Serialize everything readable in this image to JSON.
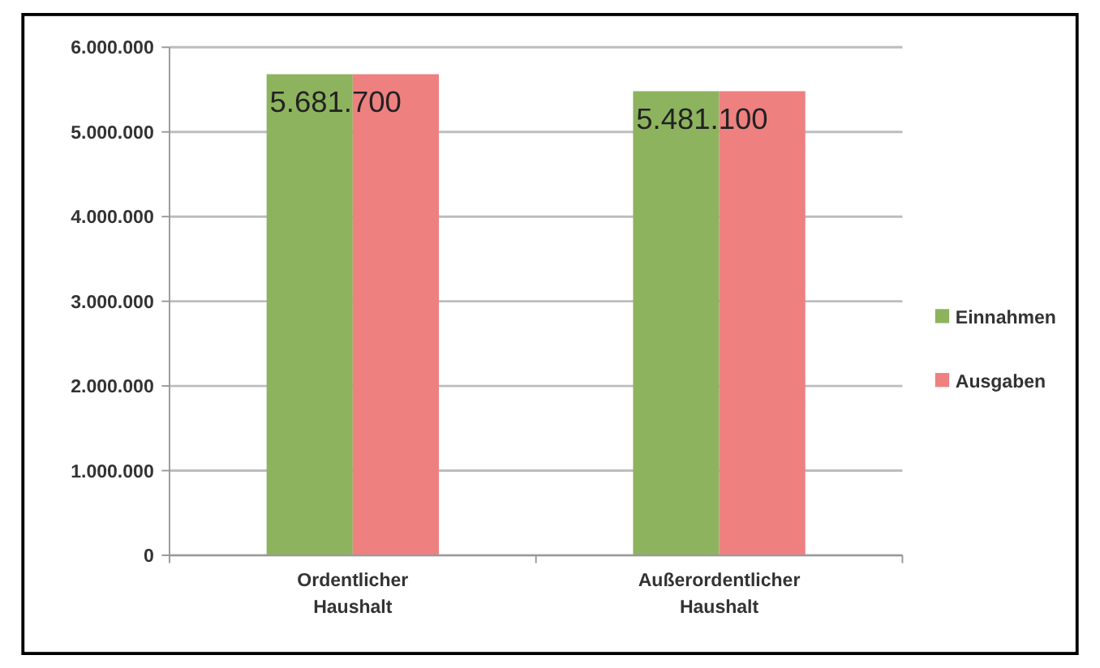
{
  "chart_data": {
    "type": "bar",
    "categories": [
      "Ordentlicher Haushalt",
      "Außerordentlicher Haushalt"
    ],
    "series": [
      {
        "name": "Einnahmen",
        "color": "#8db35e",
        "values": [
          5681700,
          5481100
        ],
        "value_labels": [
          "5.681.700",
          "5.481.100"
        ]
      },
      {
        "name": "Ausgaben",
        "color": "#ee8080",
        "values": [
          5681700,
          5481100
        ]
      }
    ],
    "ylim": [
      0,
      6000000
    ],
    "yticks": [
      {
        "value": 0,
        "label": "0"
      },
      {
        "value": 1000000,
        "label": "1.000.000"
      },
      {
        "value": 2000000,
        "label": "2.000.000"
      },
      {
        "value": 3000000,
        "label": "3.000.000"
      },
      {
        "value": 4000000,
        "label": "4.000.000"
      },
      {
        "value": 5000000,
        "label": "5.000.000"
      },
      {
        "value": 6000000,
        "label": "6.000.000"
      }
    ],
    "grid": "y",
    "legend": "right"
  }
}
